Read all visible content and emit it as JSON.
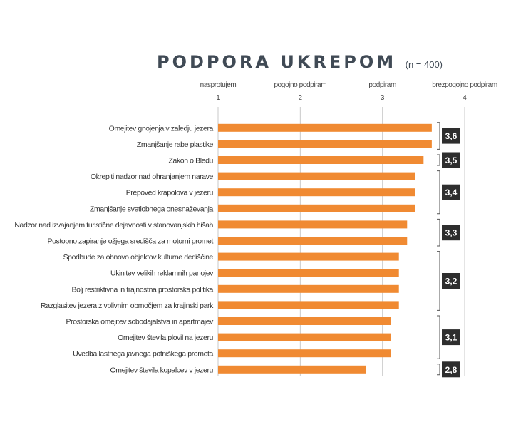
{
  "chart_data": {
    "type": "bar",
    "orientation": "horizontal",
    "title": "PODPORA UKREPOM",
    "subtitle": "(n = 400)",
    "xlim": [
      1,
      4
    ],
    "grid": true,
    "scale_labels": [
      {
        "value": 1,
        "label": "nasprotujem"
      },
      {
        "value": 2,
        "label": "pogojno podpiram"
      },
      {
        "value": 3,
        "label": "podpiram"
      },
      {
        "value": 4,
        "label": "brezpogojno podpiram"
      }
    ],
    "ticks": [
      "1",
      "2",
      "3",
      "4"
    ],
    "categories": [
      "Omejitev gnojenja v zaledju jezera",
      "Zmanjšanje rabe plastike",
      "Zakon o Bledu",
      "Okrepiti nadzor nad ohranjanjem narave",
      "Prepoved krapolova v jezeru",
      "Zmanjšanje svetlobnega onesnaževanja",
      "Nadzor nad izvajanjem turistične dejavnosti v stanovanjskih hišah",
      "Postopno zapiranje ožjega središča za motorni promet",
      "Spodbude za obnovo objektov kulturne dediščine",
      "Ukinitev velikih reklamnih panojev",
      "Bolj restriktivna in trajnostna prostorska politika",
      "Razglasitev jezera z vplivnim območjem za krajinski park",
      "Prostorska omejitev sobodajalstva in apartmajev",
      "Omejitev števila plovil na jezeru",
      "Uvedba lastnega javnega potniškega prometa",
      "Omejitev števila kopalcev v jezeru"
    ],
    "values": [
      3.6,
      3.6,
      3.5,
      3.4,
      3.4,
      3.4,
      3.3,
      3.3,
      3.2,
      3.2,
      3.2,
      3.2,
      3.1,
      3.1,
      3.1,
      2.8
    ],
    "bar_color": "#f08a32",
    "groups": [
      {
        "label": "3,6",
        "start": 0,
        "end": 1
      },
      {
        "label": "3,5",
        "start": 2,
        "end": 2
      },
      {
        "label": "3,4",
        "start": 3,
        "end": 5
      },
      {
        "label": "3,3",
        "start": 6,
        "end": 7
      },
      {
        "label": "3,2",
        "start": 8,
        "end": 11
      },
      {
        "label": "3,1",
        "start": 12,
        "end": 14
      },
      {
        "label": "2,8",
        "start": 15,
        "end": 15
      }
    ]
  }
}
